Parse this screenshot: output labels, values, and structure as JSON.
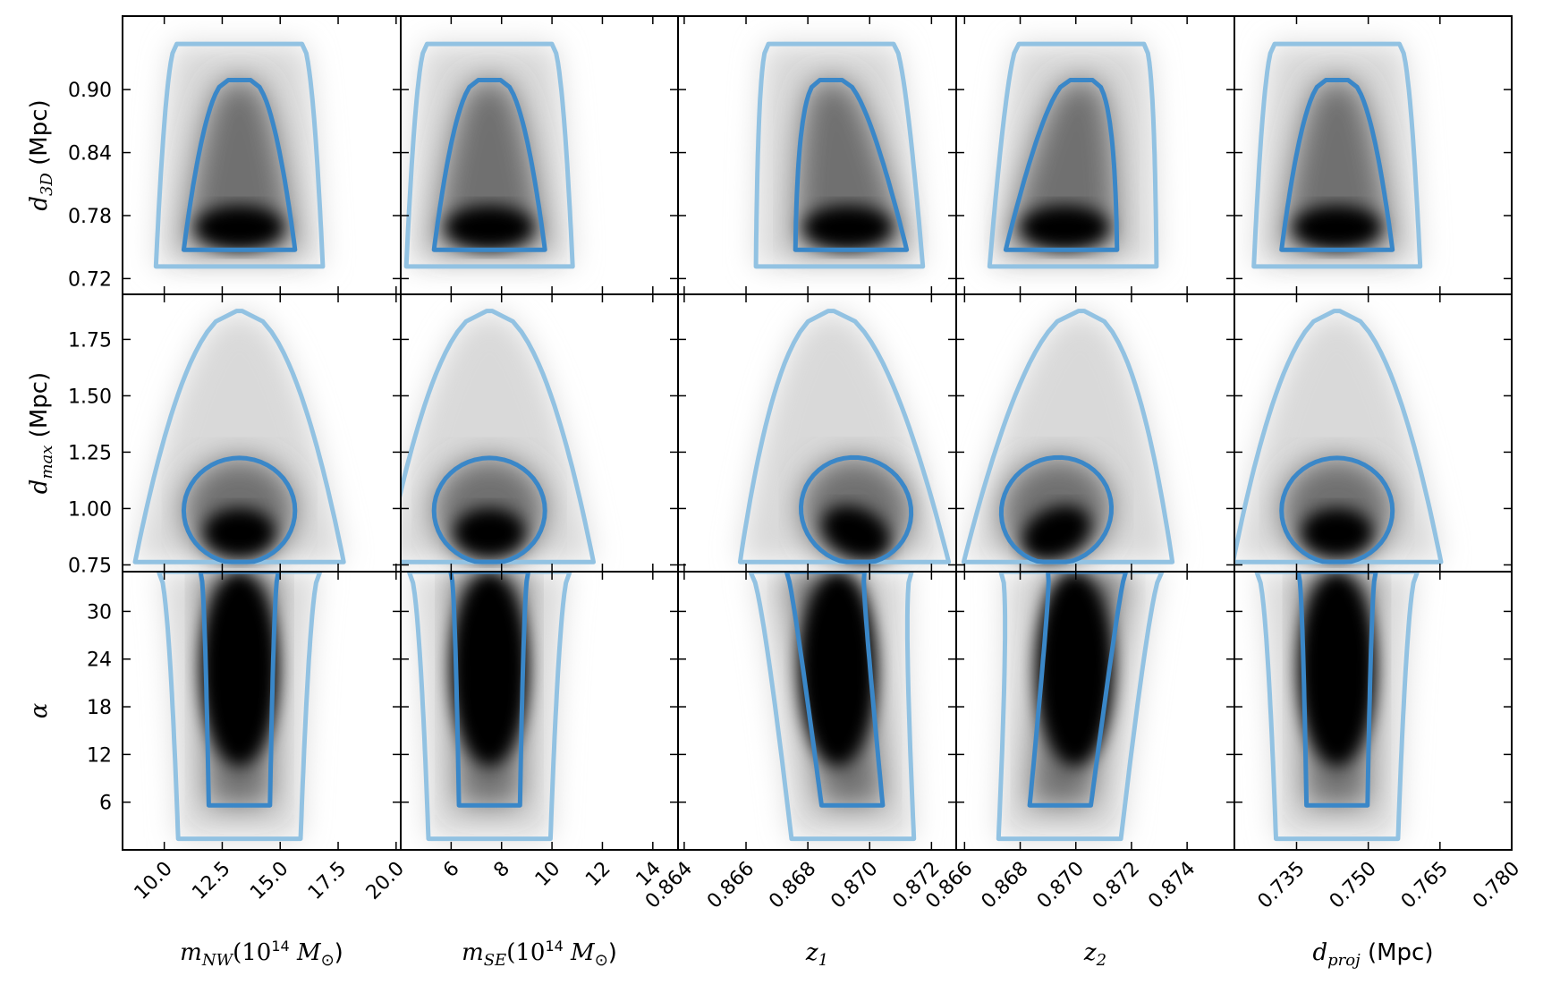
{
  "chart_data": {
    "type": "heatmap",
    "description_kind": "corner plot of 2D posterior densities with 68% and 95% contours",
    "colors": {
      "inner_contour": "#3a87c8",
      "outer_contour": "#92c2e2",
      "density_max": "#000000",
      "density_min": "#ffffff"
    },
    "columns": [
      {
        "key": "mnw",
        "label_main": "m",
        "label_sub": "NW",
        "label_suffix": "(10",
        "label_sup": "14",
        "label_end": "M",
        "label_sym": "⊙",
        "label_close": ")",
        "xlim": [
          8.2,
          20.2
        ],
        "ticks": [
          10.0,
          12.5,
          15.0,
          17.5,
          20.0
        ],
        "tick_labels": [
          "10.0",
          "12.5",
          "15.0",
          "17.5",
          "20.0"
        ],
        "center": 13.5,
        "sigma": 1.4
      },
      {
        "key": "mse",
        "label_main": "m",
        "label_sub": "SE",
        "label_suffix": "(10",
        "label_sup": "14",
        "label_end": "M",
        "label_sym": "⊙",
        "label_close": ")",
        "xlim": [
          4.0,
          15.0
        ],
        "ticks": [
          6,
          8,
          10,
          12,
          14
        ],
        "tick_labels": [
          "6",
          "8",
          "10",
          "12",
          "14"
        ],
        "center": 7.6,
        "sigma": 1.0
      },
      {
        "key": "z1",
        "label_main": "z",
        "label_sub": "1",
        "xlim": [
          0.8638,
          0.8728
        ],
        "ticks": [
          0.864,
          0.866,
          0.868,
          0.87,
          0.872
        ],
        "tick_labels": [
          "0.864",
          "0.866",
          "0.868",
          "0.870",
          "0.872"
        ],
        "center": 0.8685,
        "sigma": 0.0009
      },
      {
        "key": "z2",
        "label_main": "z",
        "label_sub": "2",
        "xlim": [
          0.8657,
          0.8757
        ],
        "ticks": [
          0.866,
          0.868,
          0.87,
          0.872,
          0.874
        ],
        "tick_labels": [
          "0.866",
          "0.868",
          "0.870",
          "0.872",
          "0.874"
        ],
        "center": 0.8705,
        "sigma": 0.001
      },
      {
        "key": "dproj",
        "label_main": "d",
        "label_sub": "proj",
        "label_plain": " (Mpc)",
        "xlim": [
          0.722,
          0.78
        ],
        "ticks": [
          0.735,
          0.75,
          0.765,
          0.78
        ],
        "tick_labels": [
          "0.735",
          "0.750",
          "0.765",
          "0.780"
        ],
        "center": 0.7445,
        "sigma": 0.006
      }
    ],
    "rows": [
      {
        "key": "d3d",
        "label_main": "d",
        "label_sub": "3D",
        "label_plain": " (Mpc)",
        "ylim": [
          0.705,
          0.97
        ],
        "ticks": [
          0.72,
          0.78,
          0.84,
          0.9
        ],
        "tick_labels": [
          "0.72",
          "0.78",
          "0.84",
          "0.90"
        ]
      },
      {
        "key": "dmax",
        "label_main": "d",
        "label_sub": "max",
        "label_plain": " (Mpc)",
        "ylim": [
          0.72,
          1.95
        ],
        "ticks": [
          0.75,
          1.0,
          1.25,
          1.5,
          1.75
        ],
        "tick_labels": [
          "0.75",
          "1.00",
          "1.25",
          "1.50",
          "1.75"
        ]
      },
      {
        "key": "alpha",
        "label_main": "α",
        "ylim": [
          0,
          35
        ],
        "ticks": [
          6,
          12,
          18,
          24,
          30
        ],
        "tick_labels": [
          "6",
          "12",
          "18",
          "24",
          "30"
        ]
      }
    ]
  }
}
